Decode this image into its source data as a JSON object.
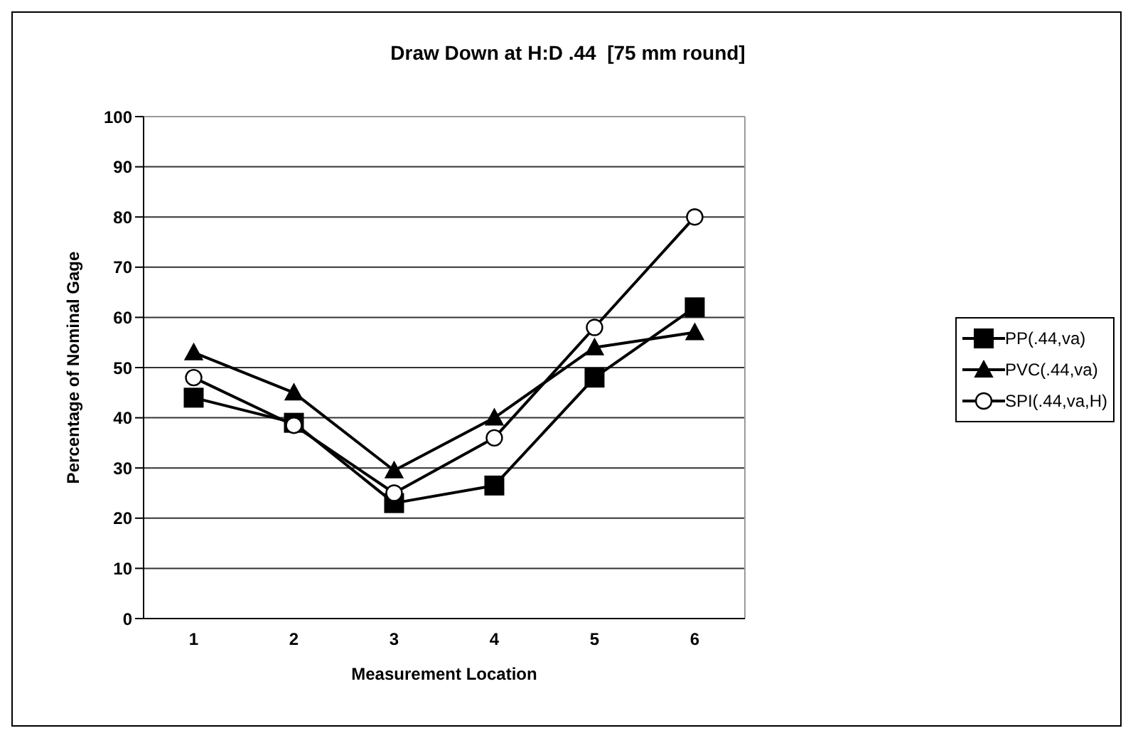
{
  "chart_data": {
    "type": "line",
    "title": "Draw Down at H:D .44  [75 mm round]",
    "xlabel": "Measurement Location",
    "ylabel": "Percentage of Nominal Gage",
    "categories": [
      "1",
      "2",
      "3",
      "4",
      "5",
      "6"
    ],
    "series": [
      {
        "name": "PP(.44,va)",
        "color": "#000000",
        "marker": "square",
        "values": [
          44,
          39,
          23,
          26.5,
          48,
          62
        ]
      },
      {
        "name": "PVC(.44,va)",
        "color": "#000000",
        "marker": "triangle",
        "values": [
          53,
          45,
          29.5,
          40,
          54,
          57
        ]
      },
      {
        "name": "SPI(.44,va,H)",
        "color": "#000000",
        "marker": "circle",
        "values": [
          48,
          38.5,
          25,
          36,
          58,
          80
        ]
      }
    ],
    "ylim": [
      0,
      100
    ],
    "yticks": [
      0,
      10,
      20,
      30,
      40,
      50,
      60,
      70,
      80,
      90,
      100
    ],
    "grid": "y",
    "legend": "right",
    "line_style": "solid"
  }
}
